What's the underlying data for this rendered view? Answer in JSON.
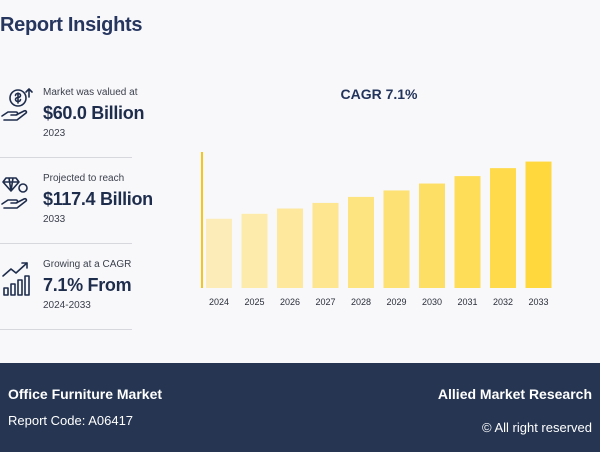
{
  "header": {
    "title": "Report Insights"
  },
  "stats": [
    {
      "label": "Market was valued at",
      "value": "$60.0 Billion",
      "sub": "2023",
      "icon": "money-hand-icon"
    },
    {
      "label": "Projected to reach",
      "value": "$117.4 Billion",
      "sub": "2033",
      "icon": "diamond-hand-icon"
    },
    {
      "label": "Growing at a CAGR",
      "value": "7.1% From",
      "sub": "2024-2033",
      "icon": "growth-chart-icon"
    }
  ],
  "chart_title": "CAGR 7.1%",
  "chart_data": {
    "type": "bar",
    "title": "CAGR 7.1%",
    "categories": [
      "2024",
      "2025",
      "2026",
      "2027",
      "2028",
      "2029",
      "2030",
      "2031",
      "2032",
      "2033"
    ],
    "values": [
      64.3,
      68.9,
      73.8,
      79.0,
      84.6,
      90.6,
      97.0,
      103.9,
      111.3,
      117.4
    ],
    "ylim": [
      0,
      130
    ],
    "xlabel": "",
    "ylabel": "",
    "grid": false,
    "colors": {
      "start": "#fcedb8",
      "end": "#ffd83d",
      "axis": "#f5c518"
    }
  },
  "footer": {
    "market": "Office Furniture Market",
    "report_code": "Report Code: A06417",
    "brand": "Allied Market Research",
    "rights": "© All right reserved"
  }
}
